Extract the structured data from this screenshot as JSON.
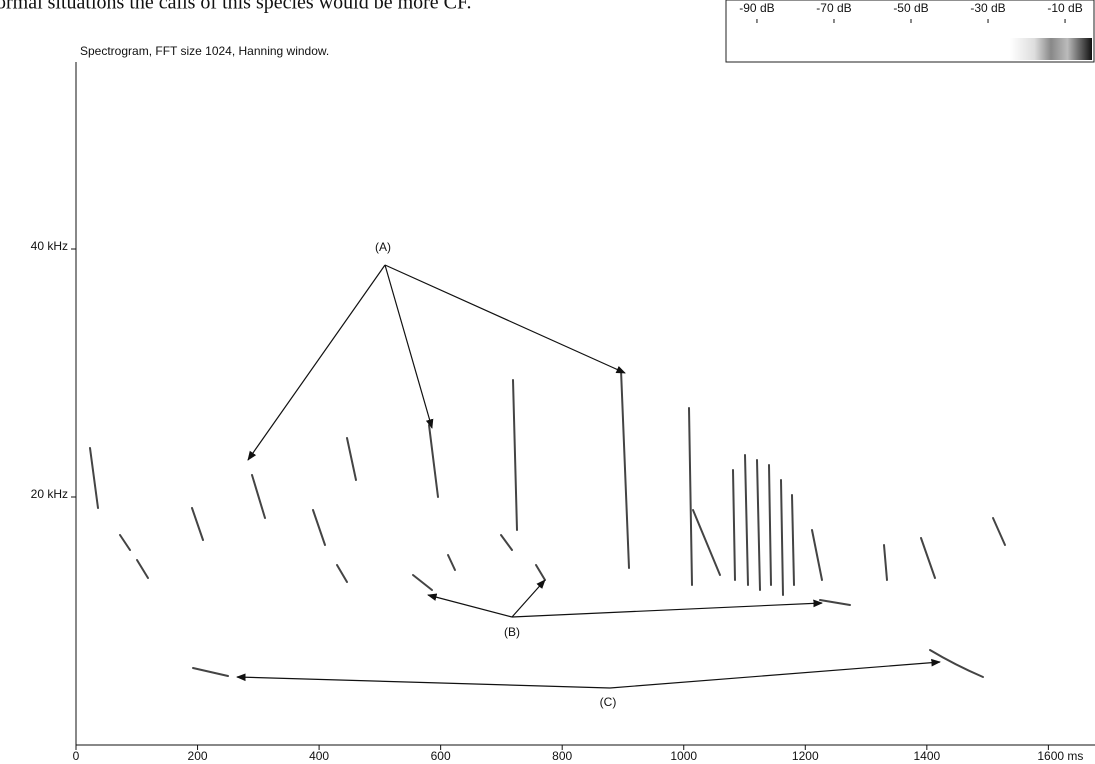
{
  "page_text": "ormal situations the calls of this species would be more CF.",
  "chart_data": {
    "type": "spectrogram",
    "title": "Spectrogram, FFT size 1024, Hanning window.",
    "xlim": [
      0,
      1680
    ],
    "xticks": [
      0,
      200,
      400,
      600,
      800,
      1000,
      1200,
      1400,
      {
        "value": 1600,
        "label": "1600 ms"
      }
    ],
    "ylim": [
      0,
      55
    ],
    "yticks": [
      {
        "value": 20,
        "label": "20 kHz"
      },
      {
        "value": 40,
        "label": "40 kHz"
      }
    ],
    "clim": [
      -97,
      -3
    ],
    "cticks": [
      {
        "value": -90,
        "label": "-90 dB"
      },
      {
        "value": -70,
        "label": "-70 dB"
      },
      {
        "value": -50,
        "label": "-50 dB"
      },
      {
        "value": -30,
        "label": "-30 dB"
      },
      {
        "value": -10,
        "label": "-10 dB"
      }
    ],
    "annotations": [
      "(A)",
      "(B)",
      "(C)"
    ]
  }
}
